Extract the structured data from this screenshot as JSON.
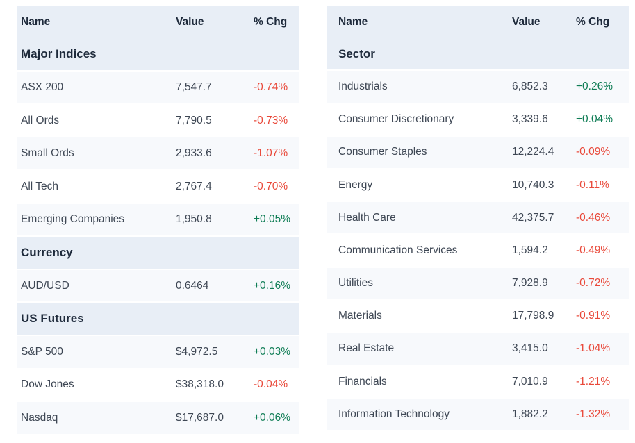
{
  "colors": {
    "band": "#e8eef6",
    "stripe": "#f7f9fc",
    "positive": "#0f7d55",
    "negative": "#e9493a",
    "heading": "#1e2a3b",
    "text": "#3e4754",
    "page-bg": "#ffffff"
  },
  "headers": {
    "name": "Name",
    "value": "Value",
    "chg": "% Chg"
  },
  "left_table": {
    "sections": [
      {
        "title": "Major Indices",
        "rows": [
          {
            "name": "ASX 200",
            "value": "7,547.7",
            "chg": "-0.74%"
          },
          {
            "name": "All Ords",
            "value": "7,790.5",
            "chg": "-0.73%"
          },
          {
            "name": "Small Ords",
            "value": "2,933.6",
            "chg": "-1.07%"
          },
          {
            "name": "All Tech",
            "value": "2,767.4",
            "chg": "-0.70%"
          },
          {
            "name": "Emerging Companies",
            "value": "1,950.8",
            "chg": "+0.05%"
          }
        ]
      },
      {
        "title": "Currency",
        "rows": [
          {
            "name": "AUD/USD",
            "value": "0.6464",
            "chg": "+0.16%"
          }
        ]
      },
      {
        "title": "US Futures",
        "rows": [
          {
            "name": "S&P 500",
            "value": "$4,972.5",
            "chg": "+0.03%"
          },
          {
            "name": "Dow Jones",
            "value": "$38,318.0",
            "chg": "-0.04%"
          },
          {
            "name": "Nasdaq",
            "value": "$17,687.0",
            "chg": "+0.06%"
          }
        ]
      }
    ]
  },
  "right_table": {
    "sections": [
      {
        "title": "Sector",
        "rows": [
          {
            "name": "Industrials",
            "value": "6,852.3",
            "chg": "+0.26%"
          },
          {
            "name": "Consumer Discretionary",
            "value": "3,339.6",
            "chg": "+0.04%"
          },
          {
            "name": "Consumer Staples",
            "value": "12,224.4",
            "chg": "-0.09%"
          },
          {
            "name": "Energy",
            "value": "10,740.3",
            "chg": "-0.11%"
          },
          {
            "name": "Health Care",
            "value": "42,375.7",
            "chg": "-0.46%"
          },
          {
            "name": "Communication Services",
            "value": "1,594.2",
            "chg": "-0.49%"
          },
          {
            "name": "Utilities",
            "value": "7,928.9",
            "chg": "-0.72%"
          },
          {
            "name": "Materials",
            "value": "17,798.9",
            "chg": "-0.91%"
          },
          {
            "name": "Real Estate",
            "value": "3,415.0",
            "chg": "-1.04%"
          },
          {
            "name": "Financials",
            "value": "7,010.9",
            "chg": "-1.21%"
          },
          {
            "name": "Information Technology",
            "value": "1,882.2",
            "chg": "-1.32%"
          }
        ]
      }
    ]
  }
}
